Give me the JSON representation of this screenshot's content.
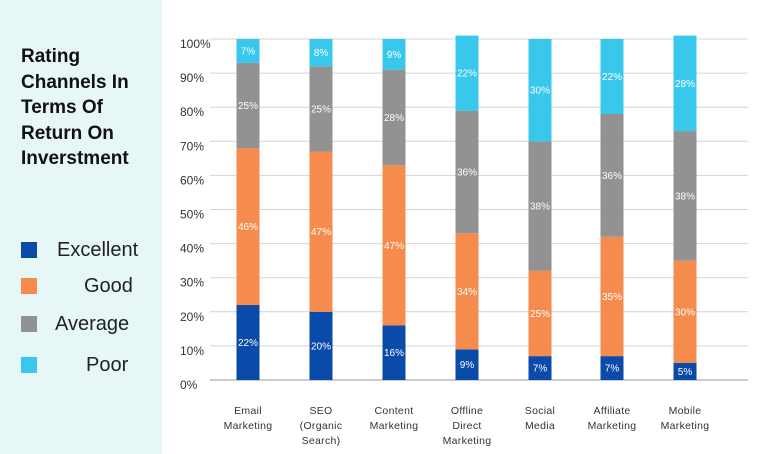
{
  "chart_data": {
    "type": "bar",
    "stacked": true,
    "title": "Rating\nChannels In\nTerms Of\nReturn On\nInverstment",
    "categories": [
      [
        "Email",
        "Marketing"
      ],
      [
        "SEO",
        "(Organic",
        "Search)"
      ],
      [
        "Content",
        "Marketing"
      ],
      [
        "Offline",
        "Direct",
        "Marketing"
      ],
      [
        "Social",
        "Media"
      ],
      [
        "Affiliate",
        "Marketing"
      ],
      [
        "Mobile",
        "Marketing"
      ]
    ],
    "series": [
      {
        "name": "Excellent",
        "color": "#0a4aa8",
        "values": [
          22,
          20,
          16,
          9,
          7,
          7,
          5
        ],
        "labels": [
          "22%",
          "20%",
          "16%",
          "9%",
          "7%",
          "7%",
          "5%"
        ]
      },
      {
        "name": "Good",
        "color": "#f58b4c",
        "values": [
          46,
          47,
          47,
          34,
          25,
          35,
          30
        ],
        "labels": [
          "46%",
          "47%",
          "47%",
          "34%",
          "25%",
          "35%",
          "30%"
        ]
      },
      {
        "name": "Average",
        "color": "#929292",
        "values": [
          25,
          25,
          28,
          36,
          38,
          36,
          38
        ],
        "labels": [
          "25%",
          "25%",
          "28%",
          "36%",
          "38%",
          "36%",
          "38%"
        ]
      },
      {
        "name": "Poor",
        "color": "#38c8ec",
        "values": [
          7,
          8,
          9,
          22,
          30,
          22,
          28
        ],
        "labels": [
          "7%",
          "8%",
          "9%",
          "22%",
          "30%",
          "22%",
          "28%"
        ]
      }
    ],
    "yticks": [
      "100%",
      "90%",
      "80%",
      "70%",
      "60%",
      "50%",
      "40%",
      "30%",
      "20%",
      "10%",
      "0%"
    ],
    "ylim": [
      0,
      100
    ],
    "grid": true,
    "legend_position": "left"
  },
  "legend": {
    "excellent": "Excellent",
    "good": "Good",
    "average": "Average",
    "poor": "Poor"
  }
}
